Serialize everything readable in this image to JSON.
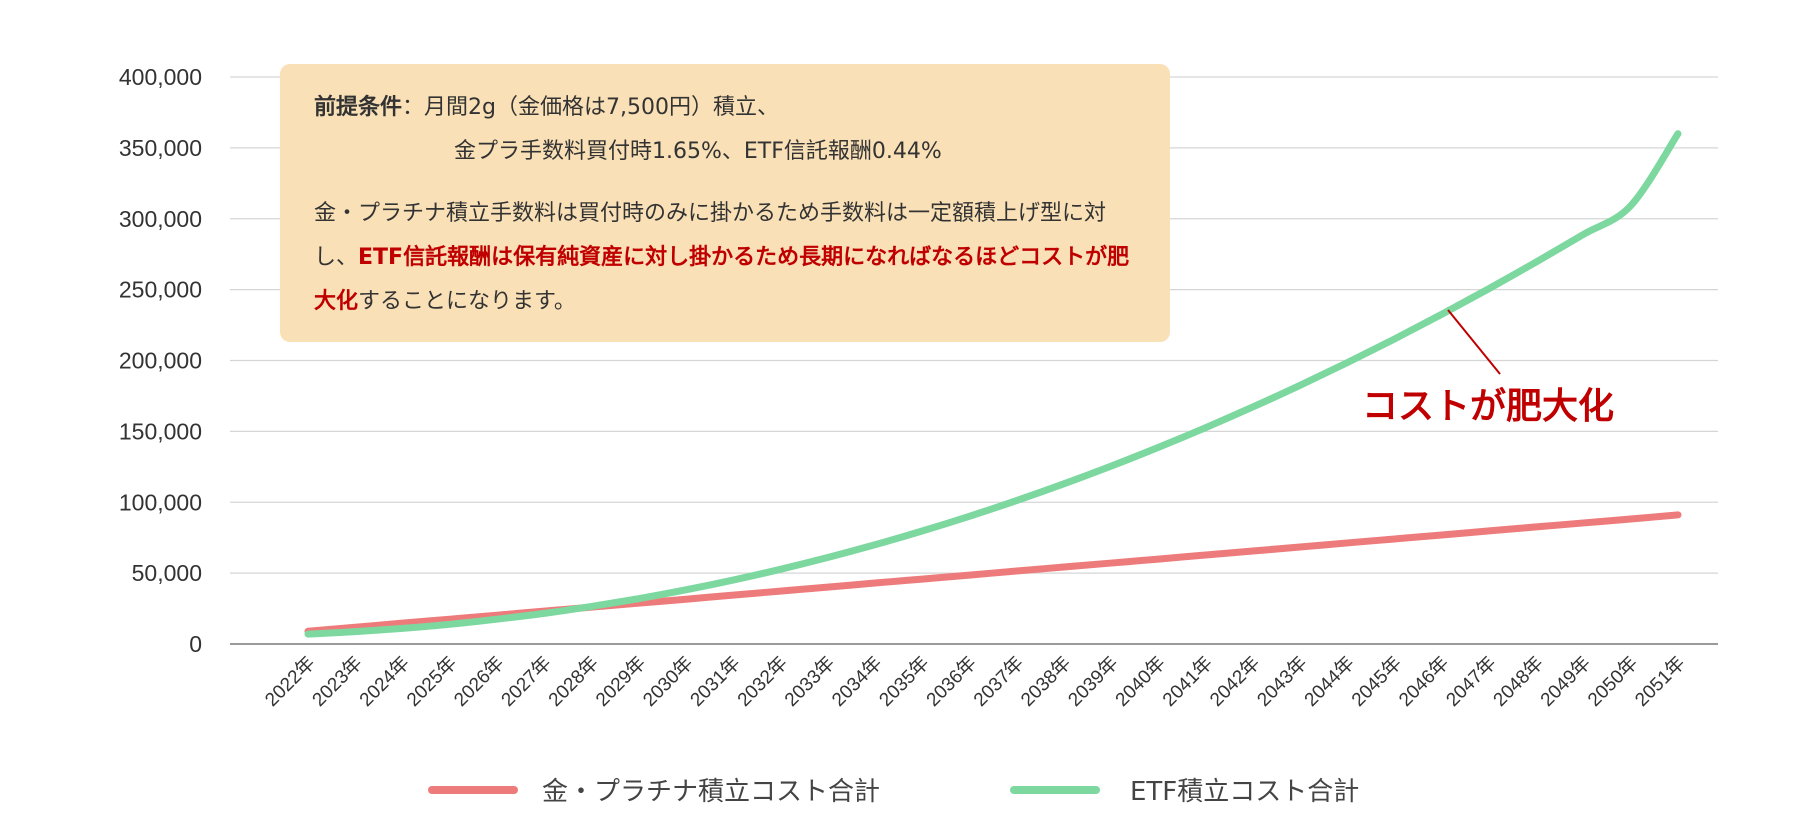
{
  "colors": {
    "gold": "#ee7b7b",
    "etf": "#7dd8a0",
    "accent_red": "#c00000",
    "note_bg": "#f9e0b6"
  },
  "note": {
    "condition_label": "前提条件",
    "condition_sep": "：",
    "condition_line1": "月間2g（金価格は7,500円）積立、",
    "condition_line2": "金プラ手数料買付時1.65%、ETF信託報酬0.44%",
    "explain_1": "金・プラチナ積立手数料は買付時のみに掛かるため手数料は一定額積上げ型に対し、",
    "explain_red": "ETF信託報酬は保有純資産に対し掛かるため長期になればなるほどコストが肥大化",
    "explain_2": "することになります。"
  },
  "callout": "コストが肥大化",
  "chart_data": {
    "type": "line",
    "title": "",
    "xlabel": "",
    "ylabel": "",
    "ylim": [
      0,
      400000
    ],
    "yticks": [
      "0",
      "50,000",
      "100,000",
      "150,000",
      "200,000",
      "250,000",
      "300,000",
      "350,000",
      "400,000"
    ],
    "grid": true,
    "legend_position": "bottom",
    "x": [
      "2022年",
      "2023年",
      "2024年",
      "2025年",
      "2026年",
      "2027年",
      "2028年",
      "2029年",
      "2030年",
      "2031年",
      "2032年",
      "2033年",
      "2034年",
      "2035年",
      "2036年",
      "2037年",
      "2038年",
      "2039年",
      "2040年",
      "2041年",
      "2042年",
      "2043年",
      "2044年",
      "2045年",
      "2046年",
      "2047年",
      "2048年",
      "2049年",
      "2050年",
      "2051年"
    ],
    "series": [
      {
        "name": "金・プラチナ積立コスト合計",
        "color": "#ee7b7b",
        "values": [
          9000,
          11800,
          14700,
          17500,
          20300,
          23200,
          26000,
          28800,
          31600,
          34500,
          37300,
          40100,
          43000,
          45800,
          48600,
          51500,
          54300,
          57100,
          59900,
          62800,
          65600,
          68400,
          71300,
          74100,
          76900,
          79800,
          82600,
          85400,
          88200,
          91100
        ]
      },
      {
        "name": "ETF積立コスト合計",
        "color": "#7dd8a0",
        "values": [
          7000,
          8700,
          11000,
          13900,
          17500,
          21600,
          26500,
          32000,
          38200,
          45100,
          52700,
          61000,
          70000,
          79700,
          90100,
          101200,
          113000,
          125500,
          138700,
          152600,
          167200,
          182500,
          198500,
          215200,
          232600,
          250700,
          269500,
          289000,
          309200,
          360000
        ]
      }
    ]
  }
}
